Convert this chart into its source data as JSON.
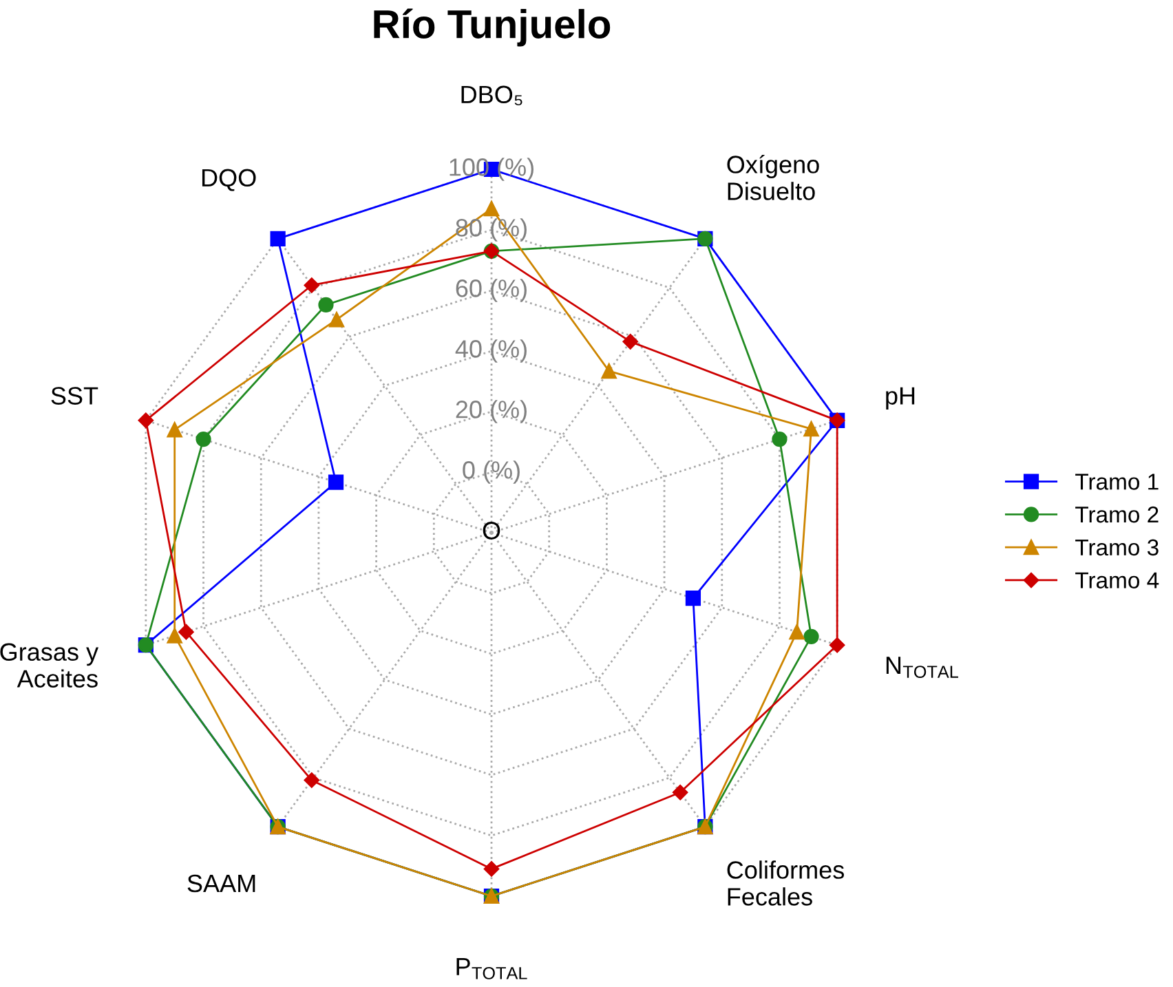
{
  "chart_data": {
    "type": "radar",
    "title": "Río Tunjuelo",
    "categories": [
      "DBO₅",
      "Oxígeno\nDisuelto",
      "pH",
      "N$_{TOTAL}$",
      "Coliformes\nFecales",
      "P$_{TOTAL}$",
      "SAAM",
      "Grasas y\nAceites",
      "SST",
      "DQO"
    ],
    "ylim": [
      -20,
      100
    ],
    "yticks": [
      {
        "value": 0,
        "label": "0 (%)"
      },
      {
        "value": 20,
        "label": "20 (%)"
      },
      {
        "value": 40,
        "label": "40 (%)"
      },
      {
        "value": 60,
        "label": "60 (%)"
      },
      {
        "value": 80,
        "label": "80 (%)"
      },
      {
        "value": 100,
        "label": "100 (%)"
      }
    ],
    "grid": true,
    "legend": "right",
    "line_style": "solid",
    "annotations": [
      "O"
    ],
    "series": [
      {
        "name": "Tramo 1",
        "color": "#0000ff",
        "marker": "square",
        "values": [
          100,
          100,
          100,
          50,
          100,
          100,
          100,
          100,
          34,
          100
        ]
      },
      {
        "name": "Tramo 2",
        "color": "#228b22",
        "marker": "circle",
        "values": [
          73,
          100,
          80,
          91,
          100,
          100,
          100,
          100,
          80,
          73
        ]
      },
      {
        "name": "Tramo 3",
        "color": "#cd8500",
        "marker": "triangle",
        "values": [
          87,
          46,
          91,
          86,
          100,
          100,
          100,
          90,
          90,
          67
        ]
      },
      {
        "name": "Tramo 4",
        "color": "#cd0000",
        "marker": "diamond",
        "values": [
          73,
          58,
          100,
          100,
          86,
          91,
          81,
          86,
          100,
          81
        ]
      }
    ]
  }
}
